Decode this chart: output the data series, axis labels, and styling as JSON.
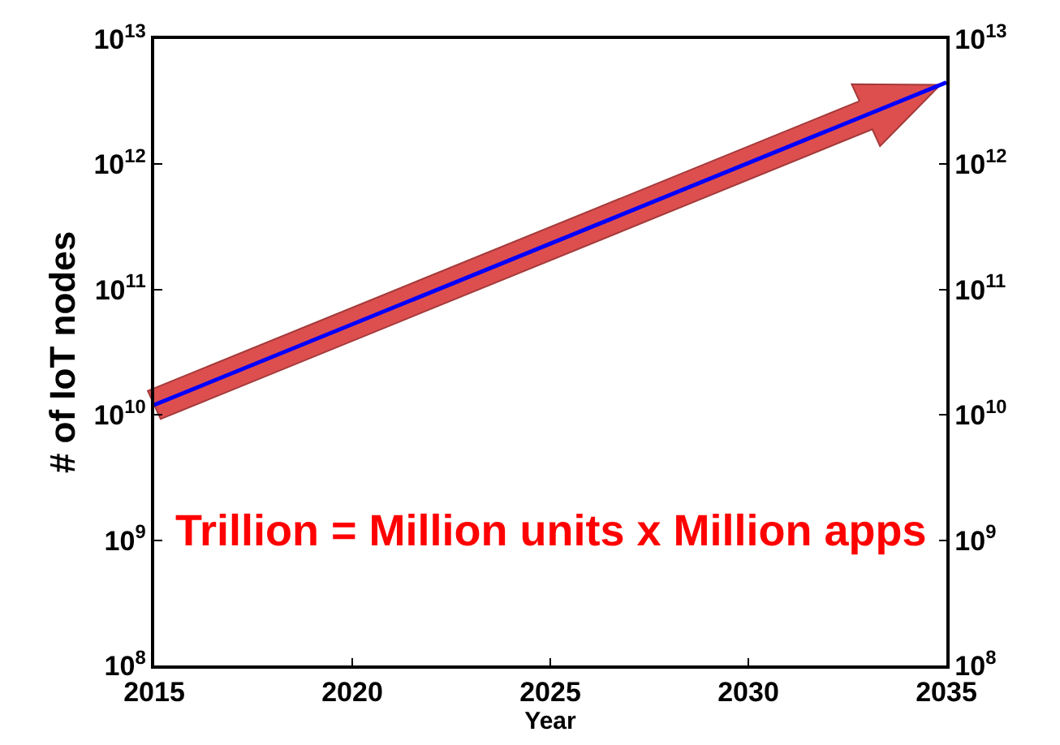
{
  "chart_data": {
    "type": "line",
    "xlabel": "Year",
    "ylabel": "# of IoT nodes",
    "x": [
      2015,
      2035
    ],
    "series": [
      {
        "color": "#0000ff",
        "values": [
          12000000000.0,
          4500000000000.0
        ]
      }
    ],
    "log": "y",
    "xlim": [
      2015,
      2035
    ],
    "xticks": [
      2015,
      2020,
      2025,
      2030,
      2035
    ],
    "ylim": [
      100000000.0,
      10000000000000.0
    ],
    "yticks": [
      {
        "value": 100000000.0,
        "label": "10$^{8}$"
      },
      {
        "value": 1000000000.0,
        "label": "10$^{9}$"
      },
      {
        "value": 10000000000.0,
        "label": "10$^{10}$"
      },
      {
        "value": 100000000000.0,
        "label": "10$^{11}$"
      },
      {
        "value": 1000000000000.0,
        "label": "10$^{12}$"
      },
      {
        "value": 10000000000000.0,
        "label": "10$^{13}$"
      }
    ],
    "annotations": [
      "Trillion = Million units x Million apps"
    ]
  }
}
